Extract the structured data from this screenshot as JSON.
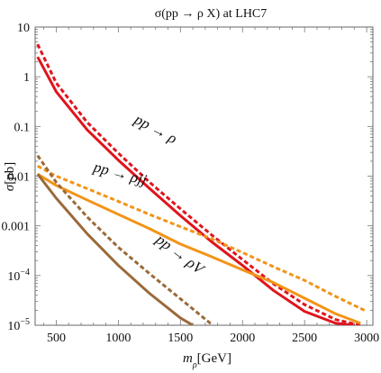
{
  "chart_data": {
    "type": "line",
    "title": "σ(pp → ρ X) at LHC7",
    "xlabel": "m_ρ[GeV]",
    "ylabel": "σ[pb]",
    "xlim": [
      330,
      3050
    ],
    "ylim": [
      1e-05,
      10
    ],
    "y_scale": "log",
    "grid": false,
    "x_ticks": [
      500,
      1000,
      1500,
      2000,
      2500,
      3000
    ],
    "x_tick_labels": [
      "500",
      "1000",
      "1500",
      "2000",
      "2500",
      "3000"
    ],
    "y_ticks": [
      10,
      1,
      0.1,
      0.01,
      0.001,
      0.0001,
      1e-05
    ],
    "y_tick_labels": [
      "10",
      "1",
      "0.1",
      "0.01",
      "0.001",
      "10^-4",
      "10^-5"
    ],
    "annotations": [
      "pp → ρ",
      "pp → ρjj",
      "pp → ρV"
    ],
    "series": [
      {
        "color": "#e0141c",
        "dash": "solid",
        "x": [
          350,
          500,
          750,
          1000,
          1250,
          1500,
          1750,
          2000,
          2250,
          2500,
          2750,
          2900
        ],
        "y": [
          2.5,
          0.5,
          0.085,
          0.021,
          0.0057,
          0.0016,
          0.00048,
          0.00016,
          5e-05,
          1.9e-05,
          1.1e-05,
          1e-05
        ]
      },
      {
        "color": "#e0141c",
        "dash": "dashed",
        "x": [
          350,
          500,
          750,
          1000,
          1250,
          1500,
          1750,
          2000,
          2250,
          2500,
          2750,
          2950
        ],
        "y": [
          4.5,
          0.75,
          0.12,
          0.029,
          0.0076,
          0.0022,
          0.00066,
          0.00021,
          6.8e-05,
          2.6e-05,
          1.3e-05,
          1e-05
        ]
      },
      {
        "color": "#f29418",
        "dash": "solid",
        "x": [
          350,
          500,
          750,
          1000,
          1250,
          1500,
          1750,
          2000,
          2250,
          2500,
          2750,
          2950
        ],
        "y": [
          0.011,
          0.0065,
          0.0033,
          0.0017,
          0.00088,
          0.00043,
          0.00024,
          0.00013,
          7.2e-05,
          3.5e-05,
          1.7e-05,
          1.1e-05
        ]
      },
      {
        "color": "#f29418",
        "dash": "dashed",
        "x": [
          350,
          500,
          750,
          1000,
          1250,
          1500,
          1750,
          2000,
          2250,
          2500,
          2750,
          3000
        ],
        "y": [
          0.016,
          0.01,
          0.0056,
          0.0031,
          0.0017,
          0.00096,
          0.00055,
          0.00029,
          0.00015,
          8e-05,
          3.8e-05,
          1.9e-05
        ]
      },
      {
        "color": "#9a6a3a",
        "dash": "solid",
        "x": [
          350,
          500,
          750,
          1000,
          1250,
          1500,
          1600
        ],
        "y": [
          0.011,
          0.0036,
          0.00069,
          0.00016,
          4.4e-05,
          1.4e-05,
          1e-05
        ]
      },
      {
        "color": "#9a6a3a",
        "dash": "dashed",
        "x": [
          350,
          500,
          750,
          1000,
          1250,
          1500,
          1760
        ],
        "y": [
          0.026,
          0.0075,
          0.0015,
          0.00037,
          0.00011,
          3.4e-05,
          1e-05
        ]
      }
    ]
  }
}
